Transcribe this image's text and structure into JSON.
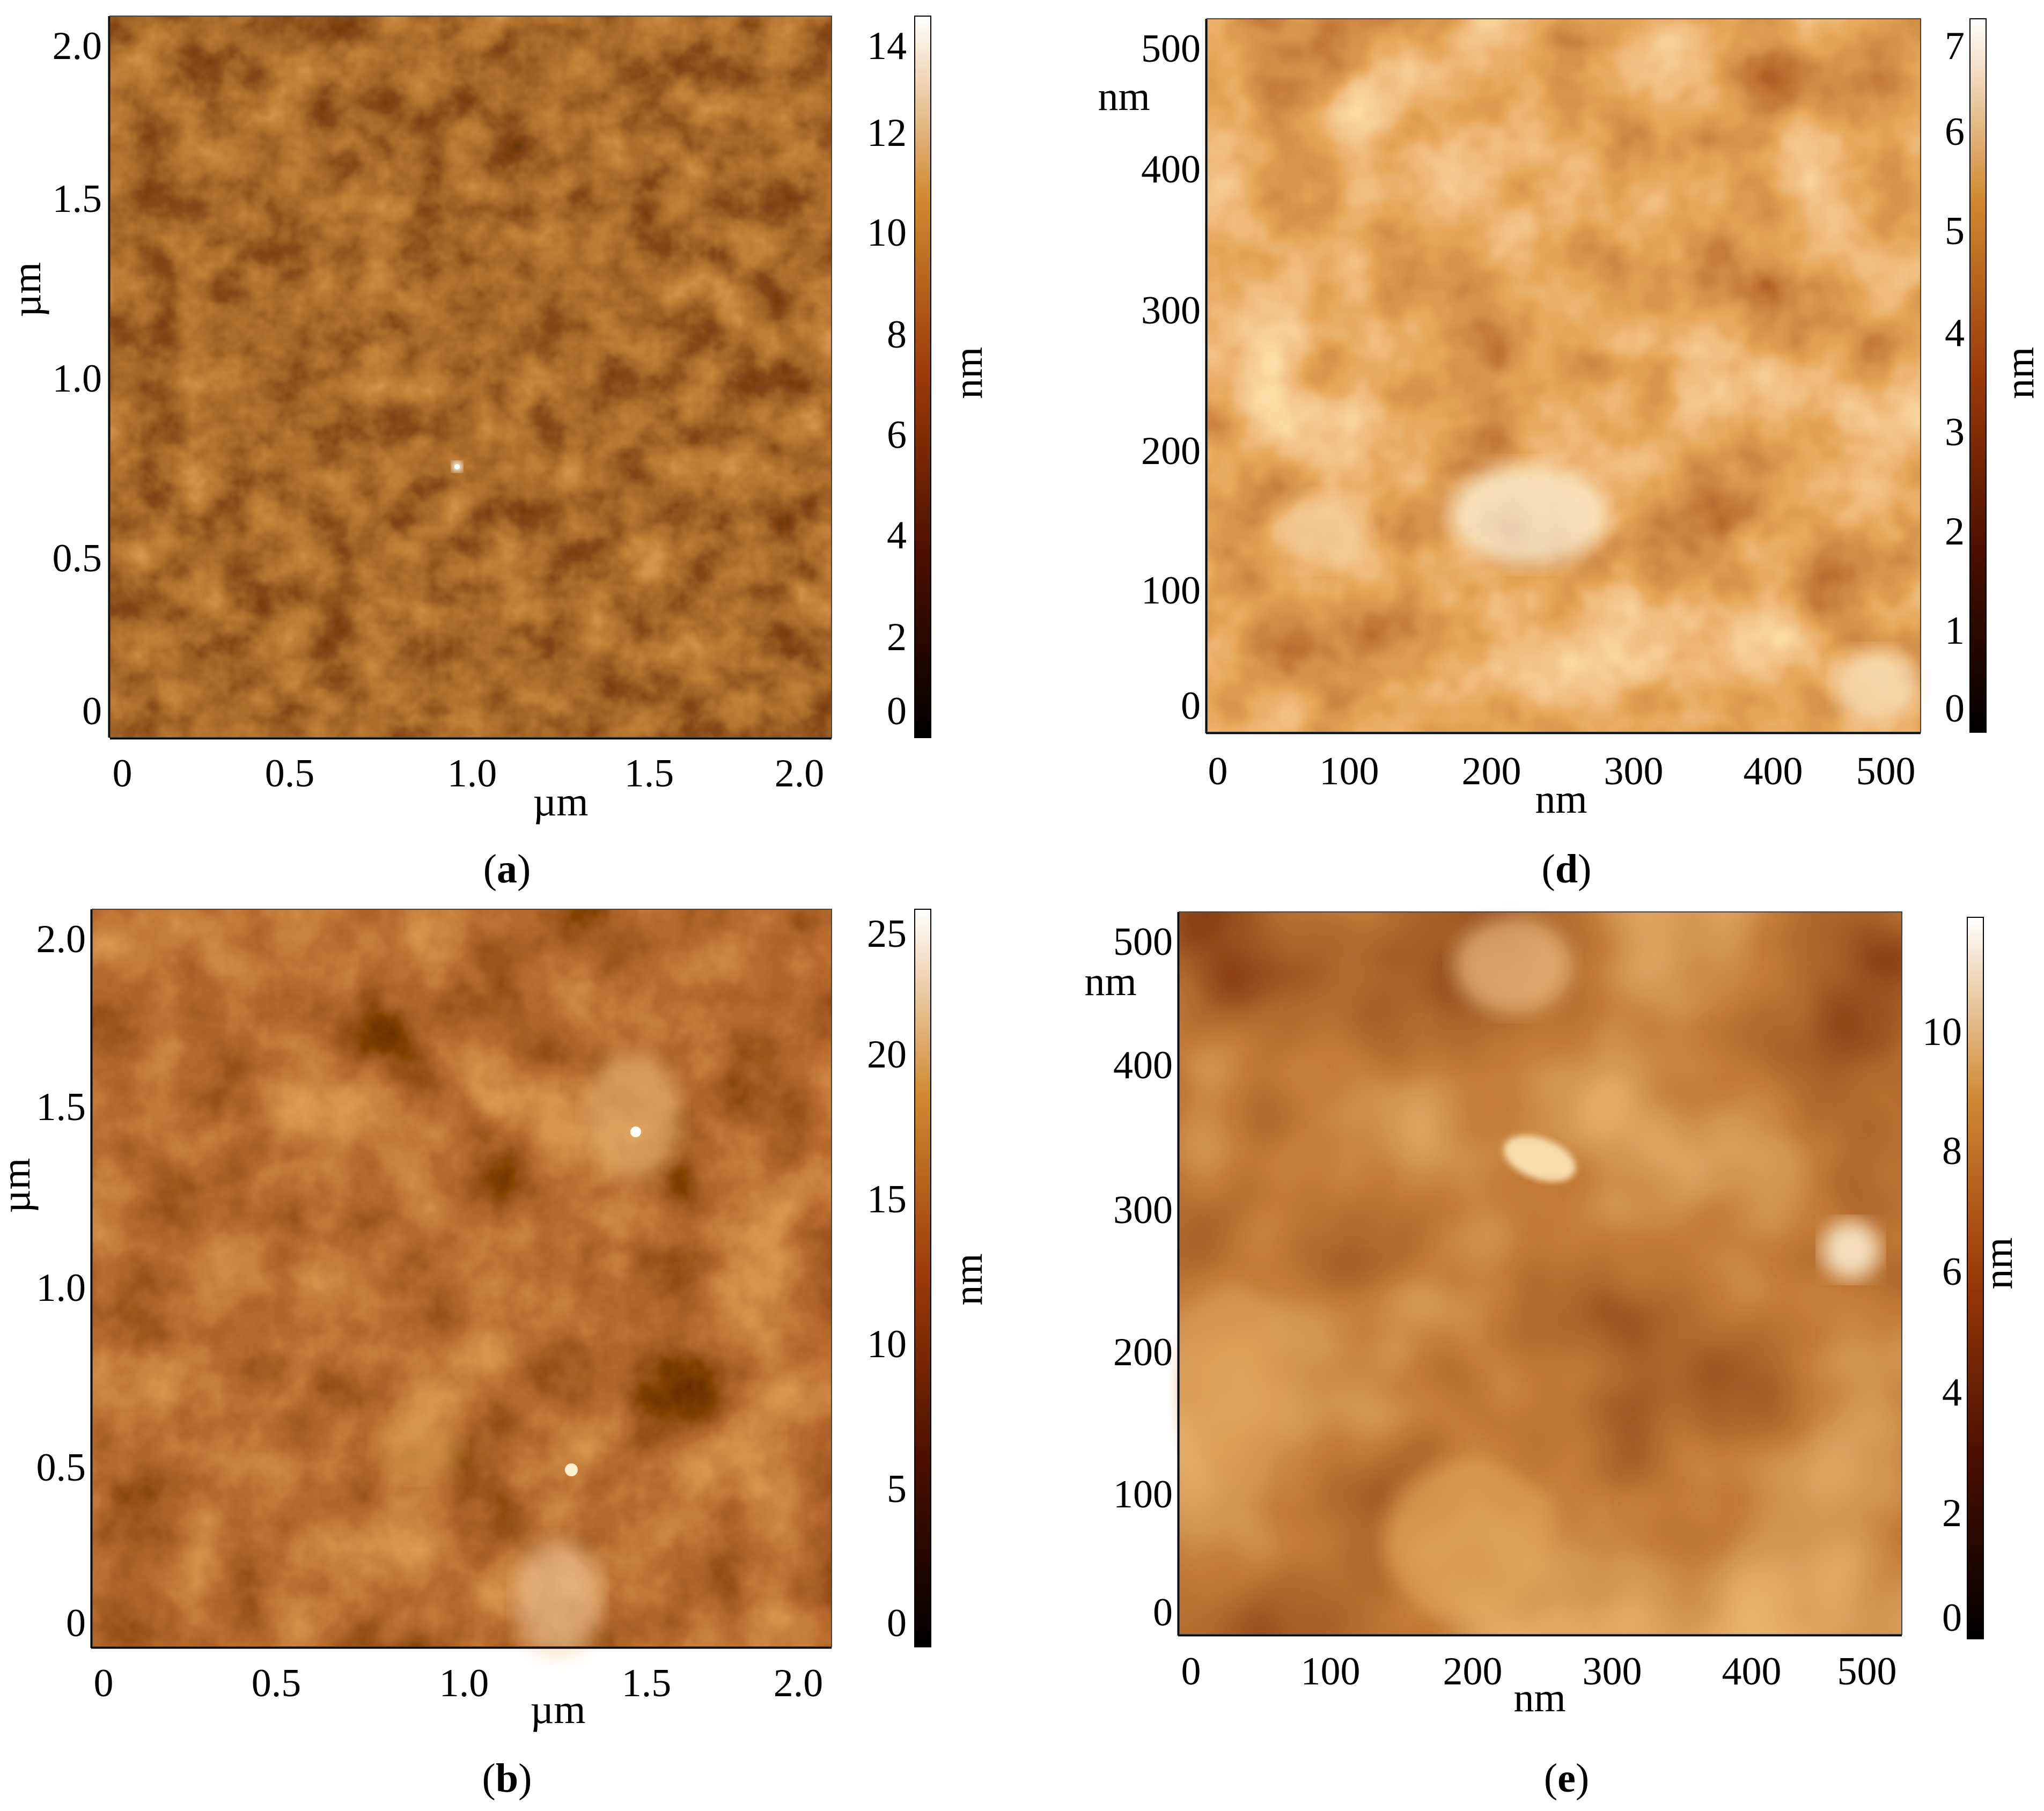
{
  "panels": [
    {
      "id": "a",
      "caption_letter": "a",
      "x_ticks": [
        "0",
        "0.5",
        "1.0",
        "1.5",
        "2.0"
      ],
      "y_ticks": [
        "0",
        "0.5",
        "1.0",
        "1.5",
        "2.0"
      ],
      "x_unit": "µm",
      "y_unit": "µm",
      "colorbar_ticks": [
        "0",
        "2",
        "4",
        "6",
        "8",
        "10",
        "12",
        "14"
      ],
      "colorbar_unit": "nm"
    },
    {
      "id": "d",
      "caption_letter": "d",
      "x_ticks": [
        "0",
        "100",
        "200",
        "300",
        "400",
        "500"
      ],
      "y_ticks": [
        "0",
        "100",
        "200",
        "300",
        "400",
        "500"
      ],
      "x_unit": "nm",
      "y_unit": "nm",
      "colorbar_ticks": [
        "0",
        "1",
        "2",
        "3",
        "4",
        "5",
        "6",
        "7"
      ],
      "colorbar_unit": "nm"
    },
    {
      "id": "b",
      "caption_letter": "b",
      "x_ticks": [
        "0",
        "0.5",
        "1.0",
        "1.5",
        "2.0"
      ],
      "y_ticks": [
        "0",
        "0.5",
        "1.0",
        "1.5",
        "2.0"
      ],
      "x_unit": "µm",
      "y_unit": "µm",
      "colorbar_ticks": [
        "0",
        "5",
        "10",
        "15",
        "20",
        "25"
      ],
      "colorbar_unit": "nm"
    },
    {
      "id": "e",
      "caption_letter": "e",
      "x_ticks": [
        "0",
        "100",
        "200",
        "300",
        "400",
        "500"
      ],
      "y_ticks": [
        "0",
        "100",
        "200",
        "300",
        "400",
        "500"
      ],
      "x_unit": "nm",
      "y_unit": "nm",
      "colorbar_ticks": [
        "0",
        "2",
        "4",
        "6",
        "8",
        "10"
      ],
      "colorbar_unit": "nm"
    }
  ],
  "colors": {
    "afm_dark": "#1a0500",
    "afm_mid": "#8a2e08",
    "afm_orange": "#c76a1c",
    "afm_light": "#f4e2c2"
  }
}
